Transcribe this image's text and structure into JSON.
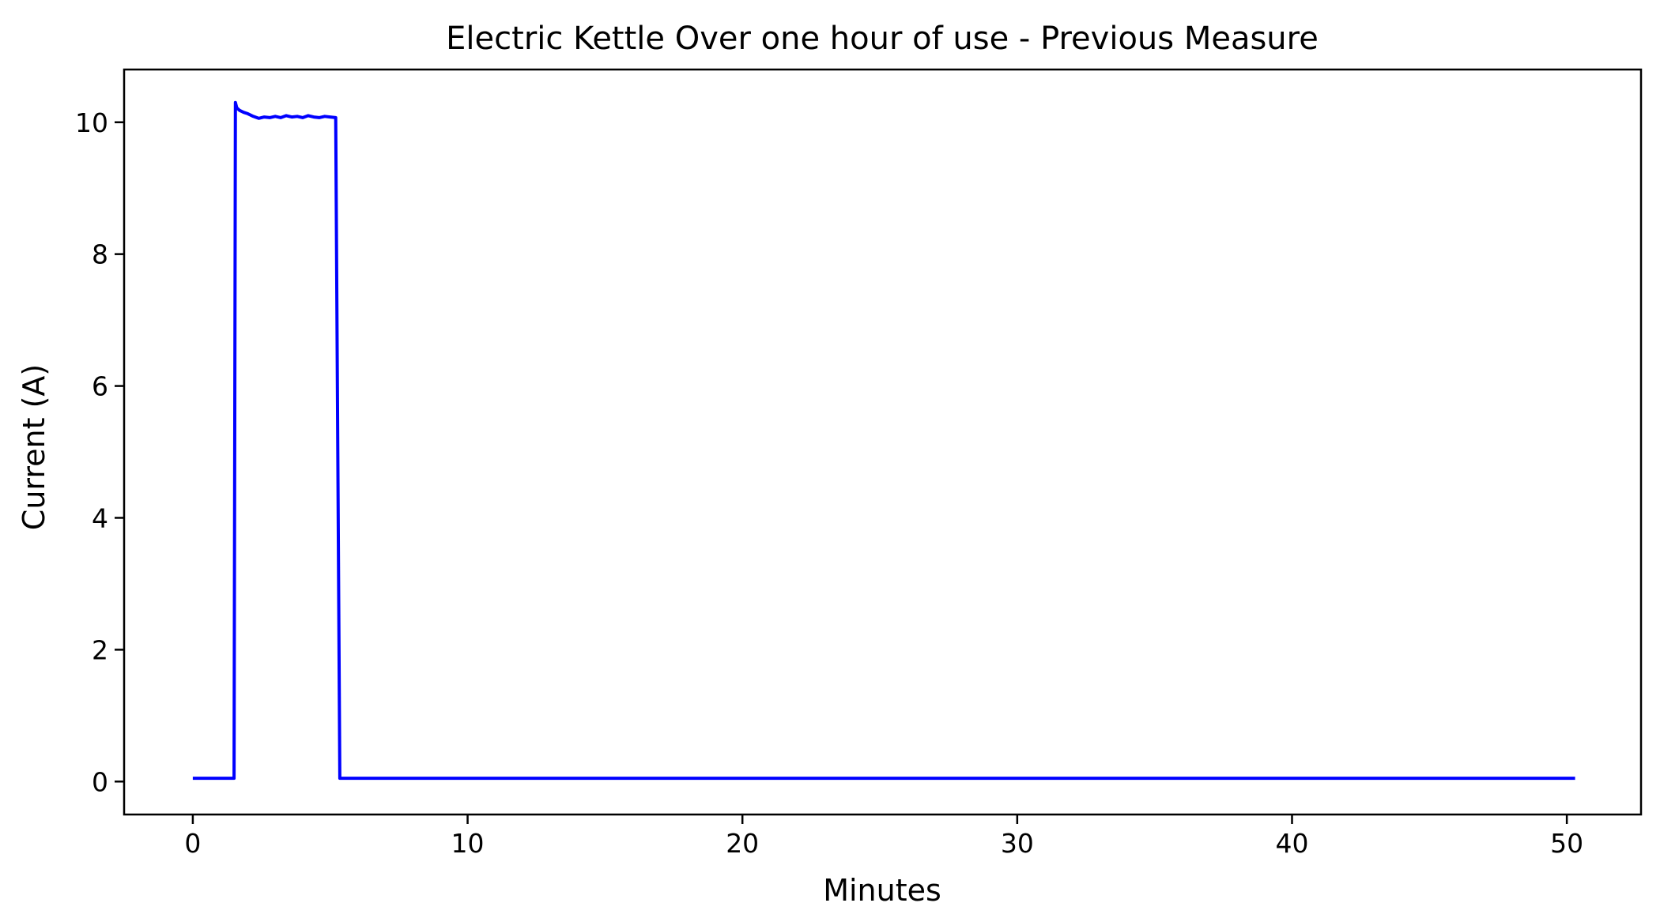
{
  "chart_data": {
    "type": "line",
    "title": "Electric Kettle Over one hour of use -  Previous Measure",
    "xlabel": "Minutes",
    "ylabel": "Current (A)",
    "xlim": [
      -2.5,
      52.7
    ],
    "ylim": [
      -0.5,
      10.8
    ],
    "xticks": [
      0,
      10,
      20,
      30,
      40,
      50
    ],
    "yticks": [
      0,
      2,
      4,
      6,
      8,
      10
    ],
    "grid": false,
    "legend": "none",
    "series": [
      {
        "color": "#0000ff",
        "x": [
          0,
          1.5,
          1.55,
          1.6,
          1.7,
          1.85,
          2.0,
          2.2,
          2.4,
          2.6,
          2.8,
          3.0,
          3.2,
          3.4,
          3.6,
          3.8,
          4.0,
          4.2,
          4.4,
          4.6,
          4.8,
          5.0,
          5.2,
          5.35,
          50.3
        ],
        "y": [
          0.05,
          0.05,
          10.3,
          10.22,
          10.18,
          10.15,
          10.13,
          10.09,
          10.06,
          10.08,
          10.07,
          10.09,
          10.07,
          10.1,
          10.08,
          10.09,
          10.07,
          10.1,
          10.08,
          10.07,
          10.09,
          10.08,
          10.07,
          0.05,
          0.05
        ]
      }
    ]
  }
}
